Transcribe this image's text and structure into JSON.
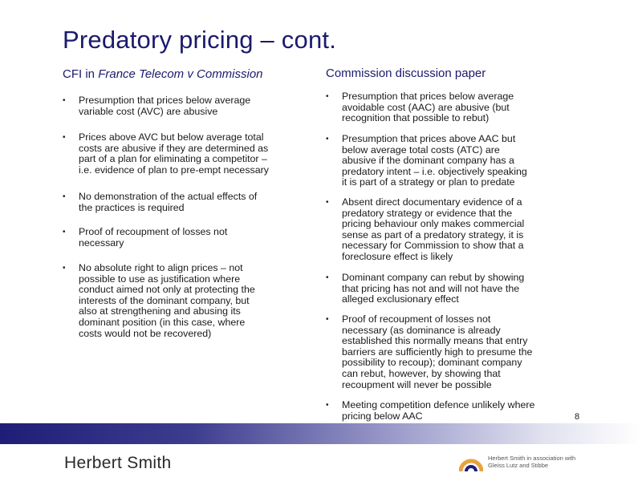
{
  "slide": {
    "title": "Predatory pricing – cont.",
    "page_number": "8"
  },
  "left": {
    "heading_prefix": "CFI in ",
    "heading_italic": "France Telecom v Commission",
    "bullets": [
      {
        "lines": [
          "Presumption that prices below average",
          "variable cost (AVC) are abusive"
        ]
      },
      {
        "lines": [
          "Prices above AVC but below average total",
          "costs are abusive if they are determined as",
          "part of a plan for eliminating a competitor –",
          "i.e. evidence of plan to pre-empt necessary"
        ]
      },
      {
        "lines": [
          "No demonstration of the actual effects of",
          "the practices is required"
        ]
      },
      {
        "lines": [
          "Proof of recoupment of losses not",
          "necessary"
        ]
      },
      {
        "lines": [
          "No absolute right to align prices – not",
          "possible to use as justification where",
          "conduct aimed not only at protecting the",
          "interests of the dominant company, but",
          "also at strengthening and abusing its",
          "dominant position (in this case, where",
          "costs would not be recovered)"
        ]
      }
    ]
  },
  "right": {
    "heading": "Commission discussion paper",
    "bullets": [
      {
        "lines": [
          "Presumption that prices below average",
          "avoidable cost (AAC) are abusive (but",
          "recognition that possible to rebut)"
        ]
      },
      {
        "lines": [
          "Presumption that prices above AAC but",
          "below average total costs (ATC) are",
          "abusive if the dominant company has a",
          "predatory intent – i.e. objectively speaking",
          "it is part of a strategy or plan to predate"
        ]
      },
      {
        "lines": [
          "Absent direct documentary evidence of a",
          "predatory strategy or evidence that the",
          "pricing behaviour only makes commercial",
          "sense as part of a predatory strategy, it is",
          "necessary for Commission to show that a",
          "foreclosure effect is likely"
        ]
      },
      {
        "lines": [
          "Dominant company can rebut by showing",
          "that pricing has not and will not have the",
          "alleged exclusionary effect"
        ]
      },
      {
        "lines": [
          "Proof of recoupment of losses not",
          "necessary (as dominance is already",
          "established this normally means that entry",
          "barriers are sufficiently high to presume the",
          "possibility to recoup); dominant company",
          "can rebut, however, by showing that",
          "recoupment will never be possible"
        ]
      },
      {
        "lines": [
          "Meeting competition defence unlikely where",
          "pricing below AAC"
        ]
      }
    ]
  },
  "footer": {
    "logo_text": "Herbert Smith",
    "partner_lines": [
      "Herbert Smith in association with",
      "Gleiss Lutz and Stibbe"
    ],
    "bar_color_start": "#1e1e78",
    "accent_color": "#e8a33c"
  }
}
